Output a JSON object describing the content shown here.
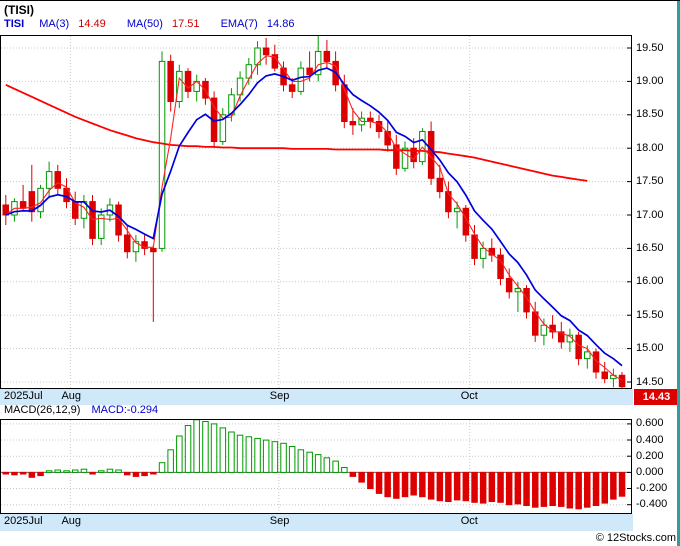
{
  "header": {
    "title": "(TISI)",
    "symbol": "TISI",
    "symbol_color": "#0000cc",
    "indicators": [
      {
        "label": "MA(3)",
        "value": "14.49",
        "label_color": "#0000cc",
        "value_color": "#cc0000"
      },
      {
        "label": "MA(50)",
        "value": "17.51",
        "label_color": "#0000cc",
        "value_color": "#cc0000"
      },
      {
        "label": "EMA(7)",
        "value": "14.86",
        "label_color": "#0000cc",
        "value_color": "#0000cc"
      }
    ]
  },
  "macd_header": {
    "label": "MACD(26,12,9)",
    "label_color": "#000000",
    "value": "MACD:-0.294",
    "value_color": "#0000cc"
  },
  "price_label": {
    "text": "14.43",
    "bg": "#dd0000",
    "fg": "#ffffff"
  },
  "footer": {
    "copyright": "© 12Stocks.com"
  },
  "colors": {
    "up": "#009900",
    "down": "#dd0000",
    "ma50": "#ff0000",
    "ma3": "#ff2222",
    "ema7": "#0000dd",
    "grid": "#c8c8c8",
    "frame": "#000000",
    "band_bg": "#cfe8fa",
    "edge": "#2f9e9e",
    "macd_pos": "#009900",
    "macd_neg": "#dd0000"
  },
  "chart_data": [
    {
      "type": "candlestick",
      "legend": [
        "MA(3)",
        "MA(50)",
        "EMA(7)"
      ],
      "last_close": 14.43,
      "ma3_last": 14.49,
      "ma50_last": 17.51,
      "ema7_last": 14.86,
      "x_axis": {
        "month_ticks": [
          {
            "label": "2025Jul",
            "index": 0
          },
          {
            "label": "Aug",
            "index": 8
          },
          {
            "label": "Sep",
            "index": 32
          },
          {
            "label": "Oct",
            "index": 54
          }
        ]
      },
      "y_axis": {
        "ticks": [
          19.5,
          19.0,
          18.5,
          18.0,
          17.5,
          17.0,
          16.5,
          16.0,
          15.5,
          15.0,
          14.5
        ],
        "range": [
          14.395,
          19.695
        ],
        "grid": true
      },
      "candles": [
        [
          17.15,
          17.3,
          16.85,
          17.0
        ],
        [
          17.0,
          17.25,
          16.9,
          17.2
        ],
        [
          17.2,
          17.45,
          17.05,
          17.1
        ],
        [
          17.35,
          17.75,
          16.9,
          17.05
        ],
        [
          17.05,
          17.45,
          16.95,
          17.4
        ],
        [
          17.4,
          17.8,
          17.25,
          17.65
        ],
        [
          17.65,
          17.75,
          17.3,
          17.4
        ],
        [
          17.4,
          17.55,
          17.1,
          17.2
        ],
        [
          17.2,
          17.35,
          16.85,
          16.95
        ],
        [
          16.95,
          17.3,
          16.8,
          17.2
        ],
        [
          17.2,
          17.3,
          16.55,
          16.65
        ],
        [
          16.65,
          17.1,
          16.55,
          17.0
        ],
        [
          17.0,
          17.25,
          16.9,
          17.15
        ],
        [
          17.15,
          17.2,
          16.6,
          16.7
        ],
        [
          16.7,
          16.85,
          16.35,
          16.45
        ],
        [
          16.45,
          16.7,
          16.3,
          16.6
        ],
        [
          16.6,
          16.7,
          16.4,
          16.5
        ],
        [
          16.5,
          16.55,
          15.4,
          16.45
        ],
        [
          16.5,
          19.45,
          16.45,
          19.3
        ],
        [
          19.3,
          19.4,
          18.55,
          18.7
        ],
        [
          18.7,
          19.25,
          18.6,
          19.15
        ],
        [
          19.15,
          19.2,
          18.75,
          18.85
        ],
        [
          18.85,
          19.1,
          18.7,
          19.0
        ],
        [
          19.0,
          19.05,
          18.65,
          18.75
        ],
        [
          18.75,
          18.85,
          18.0,
          18.1
        ],
        [
          18.1,
          18.6,
          18.05,
          18.5
        ],
        [
          18.5,
          18.9,
          18.4,
          18.8
        ],
        [
          18.8,
          19.15,
          18.7,
          19.05
        ],
        [
          19.05,
          19.35,
          18.95,
          19.25
        ],
        [
          19.25,
          19.6,
          19.1,
          19.5
        ],
        [
          19.5,
          19.65,
          19.25,
          19.4
        ],
        [
          19.4,
          19.55,
          19.15,
          19.2
        ],
        [
          19.2,
          19.3,
          18.85,
          18.95
        ],
        [
          18.95,
          19.05,
          18.75,
          18.85
        ],
        [
          18.85,
          19.3,
          18.8,
          19.2
        ],
        [
          19.2,
          19.45,
          19.0,
          19.1
        ],
        [
          19.1,
          19.68,
          19.0,
          19.45
        ],
        [
          19.45,
          19.62,
          19.2,
          19.3
        ],
        [
          19.3,
          19.45,
          18.85,
          18.95
        ],
        [
          18.95,
          19.1,
          18.3,
          18.4
        ],
        [
          18.4,
          18.6,
          18.2,
          18.35
        ],
        [
          18.35,
          18.55,
          18.25,
          18.45
        ],
        [
          18.45,
          18.55,
          18.3,
          18.4
        ],
        [
          18.4,
          18.5,
          18.15,
          18.25
        ],
        [
          18.25,
          18.4,
          17.95,
          18.05
        ],
        [
          18.05,
          18.2,
          17.6,
          17.7
        ],
        [
          17.7,
          18.1,
          17.65,
          18.0
        ],
        [
          18.0,
          18.15,
          17.7,
          17.8
        ],
        [
          17.8,
          18.3,
          17.75,
          18.25
        ],
        [
          18.25,
          18.4,
          17.45,
          17.55
        ],
        [
          17.55,
          17.75,
          17.25,
          17.35
        ],
        [
          17.35,
          17.5,
          16.95,
          17.05
        ],
        [
          17.05,
          17.2,
          16.8,
          17.1
        ],
        [
          17.1,
          17.15,
          16.6,
          16.7
        ],
        [
          16.7,
          16.85,
          16.25,
          16.35
        ],
        [
          16.35,
          16.6,
          16.2,
          16.5
        ],
        [
          16.5,
          16.65,
          16.3,
          16.4
        ],
        [
          16.4,
          16.5,
          15.95,
          16.05
        ],
        [
          16.05,
          16.2,
          15.75,
          15.85
        ],
        [
          15.85,
          16.0,
          15.55,
          15.9
        ],
        [
          15.9,
          15.95,
          15.45,
          15.55
        ],
        [
          15.55,
          15.7,
          15.1,
          15.2
        ],
        [
          15.2,
          15.45,
          15.05,
          15.35
        ],
        [
          15.35,
          15.5,
          15.15,
          15.25
        ],
        [
          15.25,
          15.4,
          15.0,
          15.1
        ],
        [
          15.1,
          15.3,
          14.95,
          15.2
        ],
        [
          15.2,
          15.25,
          14.75,
          14.85
        ],
        [
          14.85,
          15.05,
          14.7,
          14.95
        ],
        [
          14.95,
          15.0,
          14.55,
          14.65
        ],
        [
          14.65,
          14.8,
          14.48,
          14.55
        ],
        [
          14.55,
          14.7,
          14.42,
          14.6
        ],
        [
          14.6,
          14.65,
          14.41,
          14.43
        ]
      ],
      "ma50": [
        18.95,
        18.89,
        18.83,
        18.77,
        18.71,
        18.65,
        18.59,
        18.53,
        18.47,
        18.42,
        18.37,
        18.32,
        18.27,
        18.23,
        18.19,
        18.15,
        18.12,
        18.09,
        18.07,
        18.05,
        18.04,
        18.03,
        18.03,
        18.02,
        18.02,
        18.01,
        18.01,
        18.0,
        18.0,
        18.0,
        18.0,
        18.0,
        18.0,
        17.99,
        17.99,
        17.99,
        17.99,
        17.99,
        17.98,
        17.98,
        17.98,
        17.98,
        17.98,
        17.98,
        17.97,
        17.97,
        17.97,
        17.96,
        17.96,
        17.95,
        17.94,
        17.92,
        17.9,
        17.88,
        17.86,
        17.83,
        17.8,
        17.77,
        17.74,
        17.71,
        17.68,
        17.65,
        17.62,
        17.59,
        17.57,
        17.55,
        17.53,
        17.51,
        null,
        null,
        null,
        null
      ]
    },
    {
      "type": "bar",
      "name": "MACD(26,12,9) histogram",
      "last": -0.294,
      "y_axis": {
        "ticks": [
          0.6,
          0.4,
          0.2,
          0.0,
          -0.2,
          -0.4
        ],
        "range": [
          -0.515,
          0.66
        ],
        "grid": true
      },
      "values": [
        -0.02,
        -0.03,
        -0.02,
        -0.06,
        -0.04,
        0.02,
        0.03,
        0.02,
        0.03,
        0.04,
        -0.02,
        0.02,
        0.04,
        0.03,
        -0.03,
        -0.05,
        -0.04,
        -0.02,
        0.12,
        0.28,
        0.45,
        0.58,
        0.65,
        0.63,
        0.6,
        0.55,
        0.5,
        0.46,
        0.44,
        0.42,
        0.4,
        0.38,
        0.36,
        0.32,
        0.28,
        0.25,
        0.22,
        0.18,
        0.14,
        0.06,
        -0.05,
        -0.12,
        -0.2,
        -0.26,
        -0.3,
        -0.32,
        -0.3,
        -0.28,
        -0.3,
        -0.33,
        -0.35,
        -0.36,
        -0.34,
        -0.35,
        -0.37,
        -0.38,
        -0.36,
        -0.37,
        -0.4,
        -0.39,
        -0.41,
        -0.43,
        -0.42,
        -0.41,
        -0.42,
        -0.44,
        -0.45,
        -0.43,
        -0.41,
        -0.38,
        -0.33,
        -0.294
      ]
    }
  ]
}
